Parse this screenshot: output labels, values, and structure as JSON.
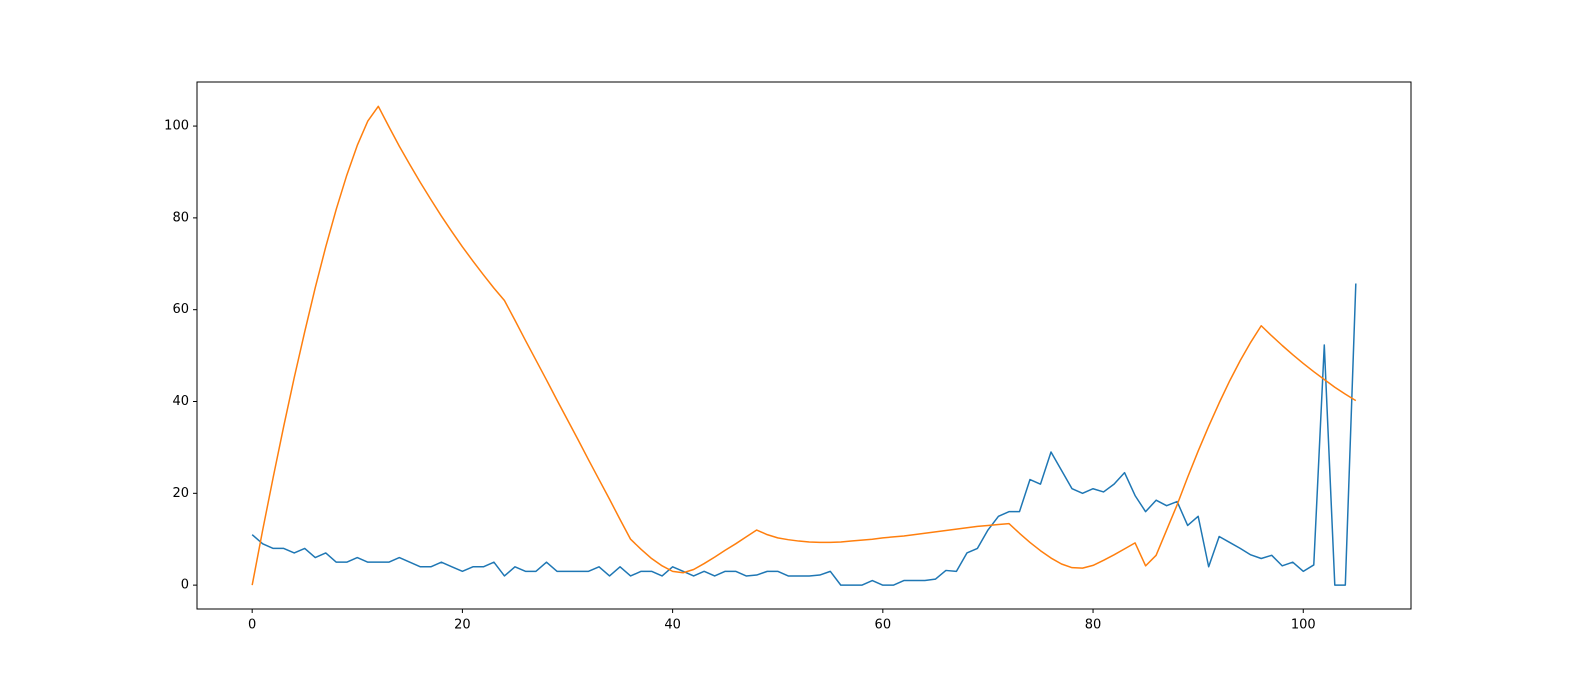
{
  "chart_data": {
    "type": "line",
    "x": [
      0,
      1,
      2,
      3,
      4,
      5,
      6,
      7,
      8,
      9,
      10,
      11,
      12,
      13,
      14,
      15,
      16,
      17,
      18,
      19,
      20,
      21,
      22,
      23,
      24,
      25,
      26,
      27,
      28,
      29,
      30,
      31,
      32,
      33,
      34,
      35,
      36,
      37,
      38,
      39,
      40,
      41,
      42,
      43,
      44,
      45,
      46,
      47,
      48,
      49,
      50,
      51,
      52,
      53,
      54,
      55,
      56,
      57,
      58,
      59,
      60,
      61,
      62,
      63,
      64,
      65,
      66,
      67,
      68,
      69,
      70,
      71,
      72,
      73,
      74,
      75,
      76,
      77,
      78,
      79,
      80,
      81,
      82,
      83,
      84,
      85,
      86,
      87,
      88,
      89,
      90,
      91,
      92,
      93,
      94,
      95,
      96,
      97,
      98,
      99,
      100,
      101,
      102,
      103,
      104,
      105
    ],
    "series": [
      {
        "color": "#1f77b4",
        "values": [
          11,
          9,
          8,
          8,
          7,
          8,
          6,
          7,
          5,
          5,
          6,
          5,
          5,
          5,
          6,
          5,
          4,
          4,
          5,
          4,
          3,
          4,
          4,
          5,
          2,
          4,
          3,
          3,
          5,
          3,
          3,
          3,
          3,
          4,
          2,
          4,
          2,
          3,
          3,
          2,
          4,
          3,
          2,
          3,
          2,
          3,
          3,
          2,
          2.2,
          3,
          3,
          2,
          2,
          2,
          2.2,
          3,
          0,
          0,
          0,
          1,
          0,
          0,
          1,
          1,
          1,
          1.3,
          3.2,
          3,
          7,
          8,
          12,
          15,
          16,
          16,
          23,
          22,
          29,
          25,
          21,
          20,
          21,
          20.3,
          22,
          24.5,
          19.5,
          16,
          18.5,
          17.3,
          18.2,
          13,
          15,
          4,
          10.6,
          9.3,
          8,
          6.6,
          5.8,
          6.5,
          4.2,
          5,
          3,
          4.4,
          52.3,
          0,
          0,
          65.7
        ]
      },
      {
        "color": "#ff7f0e",
        "values": [
          0,
          12.0,
          23.5,
          34.6,
          45.2,
          55.2,
          64.8,
          73.7,
          81.9,
          89.3,
          95.8,
          101.1,
          104.3,
          99.9,
          95.6,
          91.6,
          87.7,
          84.0,
          80.4,
          77.0,
          73.7,
          70.6,
          67.6,
          64.7,
          62.0,
          57.7,
          53.3,
          49.0,
          44.7,
          40.3,
          36.0,
          31.7,
          27.3,
          23.0,
          18.7,
          14.3,
          10.0,
          7.8,
          5.8,
          4.2,
          3.0,
          2.7,
          3.4,
          4.7,
          6.1,
          7.6,
          9.0,
          10.5,
          12.0,
          11.0,
          10.3,
          9.9,
          9.6,
          9.4,
          9.3,
          9.3,
          9.4,
          9.6,
          9.8,
          10.0,
          10.3,
          10.5,
          10.7,
          11.0,
          11.3,
          11.6,
          11.9,
          12.2,
          12.5,
          12.8,
          13.0,
          13.2,
          13.4,
          11.3,
          9.3,
          7.5,
          5.9,
          4.6,
          3.8,
          3.7,
          4.3,
          5.4,
          6.6,
          7.9,
          9.2,
          4.2,
          6.5,
          12.0,
          17.5,
          23.5,
          29.2,
          34.6,
          39.7,
          44.5,
          48.9,
          52.9,
          56.5,
          54.3,
          52.2,
          50.2,
          48.3,
          46.5,
          44.8,
          43.1,
          41.6,
          40.2
        ]
      }
    ],
    "xlim": [
      -5.25,
      110.25
    ],
    "ylim": [
      -5.2,
      109.6
    ],
    "xticks": [
      0,
      20,
      40,
      60,
      80,
      100
    ],
    "yticks": [
      0,
      20,
      40,
      60,
      80,
      100
    ]
  }
}
